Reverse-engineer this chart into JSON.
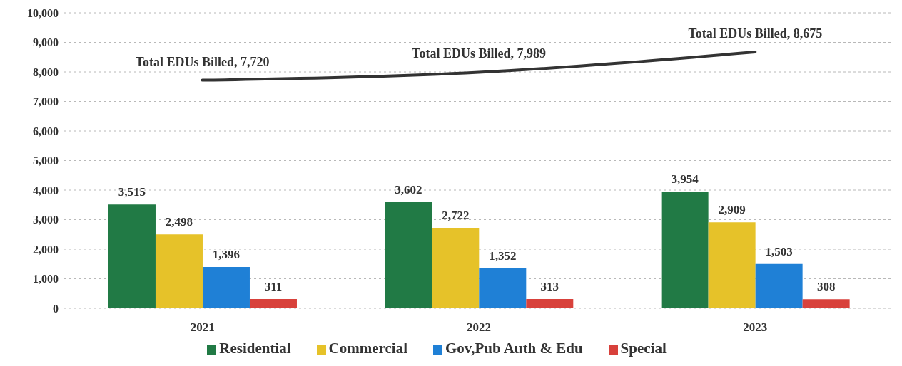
{
  "chart_data": {
    "type": "bar",
    "categories": [
      "2021",
      "2022",
      "2023"
    ],
    "series": [
      {
        "name": "Residential",
        "color": "#217a45",
        "values": [
          3515,
          3602,
          3954
        ],
        "value_labels": [
          "3,515",
          "3,602",
          "3,954"
        ]
      },
      {
        "name": "Commercial",
        "color": "#e6c229",
        "values": [
          2498,
          2722,
          2909
        ],
        "value_labels": [
          "2,498",
          "2,722",
          "2,909"
        ]
      },
      {
        "name": "Gov,Pub Auth & Edu",
        "color": "#1f80d6",
        "values": [
          1396,
          1352,
          1503
        ],
        "value_labels": [
          "1,396",
          "1,352",
          "1,503"
        ]
      },
      {
        "name": "Special",
        "color": "#d8413b",
        "values": [
          311,
          313,
          308
        ],
        "value_labels": [
          "311",
          "313",
          "308"
        ]
      },
      {
        "type": "line",
        "color": "#333333",
        "values": [
          7720,
          7989,
          8675
        ],
        "value_labels": [
          "Total EDUs Billed, 7,720",
          "Total EDUs Billed, 7,989",
          "Total EDUs Billed, 8,675"
        ]
      }
    ],
    "ylim": [
      0,
      10000
    ],
    "yticks": [
      0,
      {
        "value": 1000,
        "label": "1,000"
      },
      {
        "value": 2000,
        "label": "2,000"
      },
      {
        "value": 3000,
        "label": "3,000"
      },
      {
        "value": 4000,
        "label": "4,000"
      },
      {
        "value": 5000,
        "label": "5,000"
      },
      {
        "value": 6000,
        "label": "6,000"
      },
      {
        "value": 7000,
        "label": "7,000"
      },
      {
        "value": 8000,
        "label": "8,000"
      },
      {
        "value": 9000,
        "label": "9,000"
      },
      {
        "value": 10000,
        "label": "10,000"
      }
    ],
    "grid": "y",
    "legend": "bottom"
  }
}
